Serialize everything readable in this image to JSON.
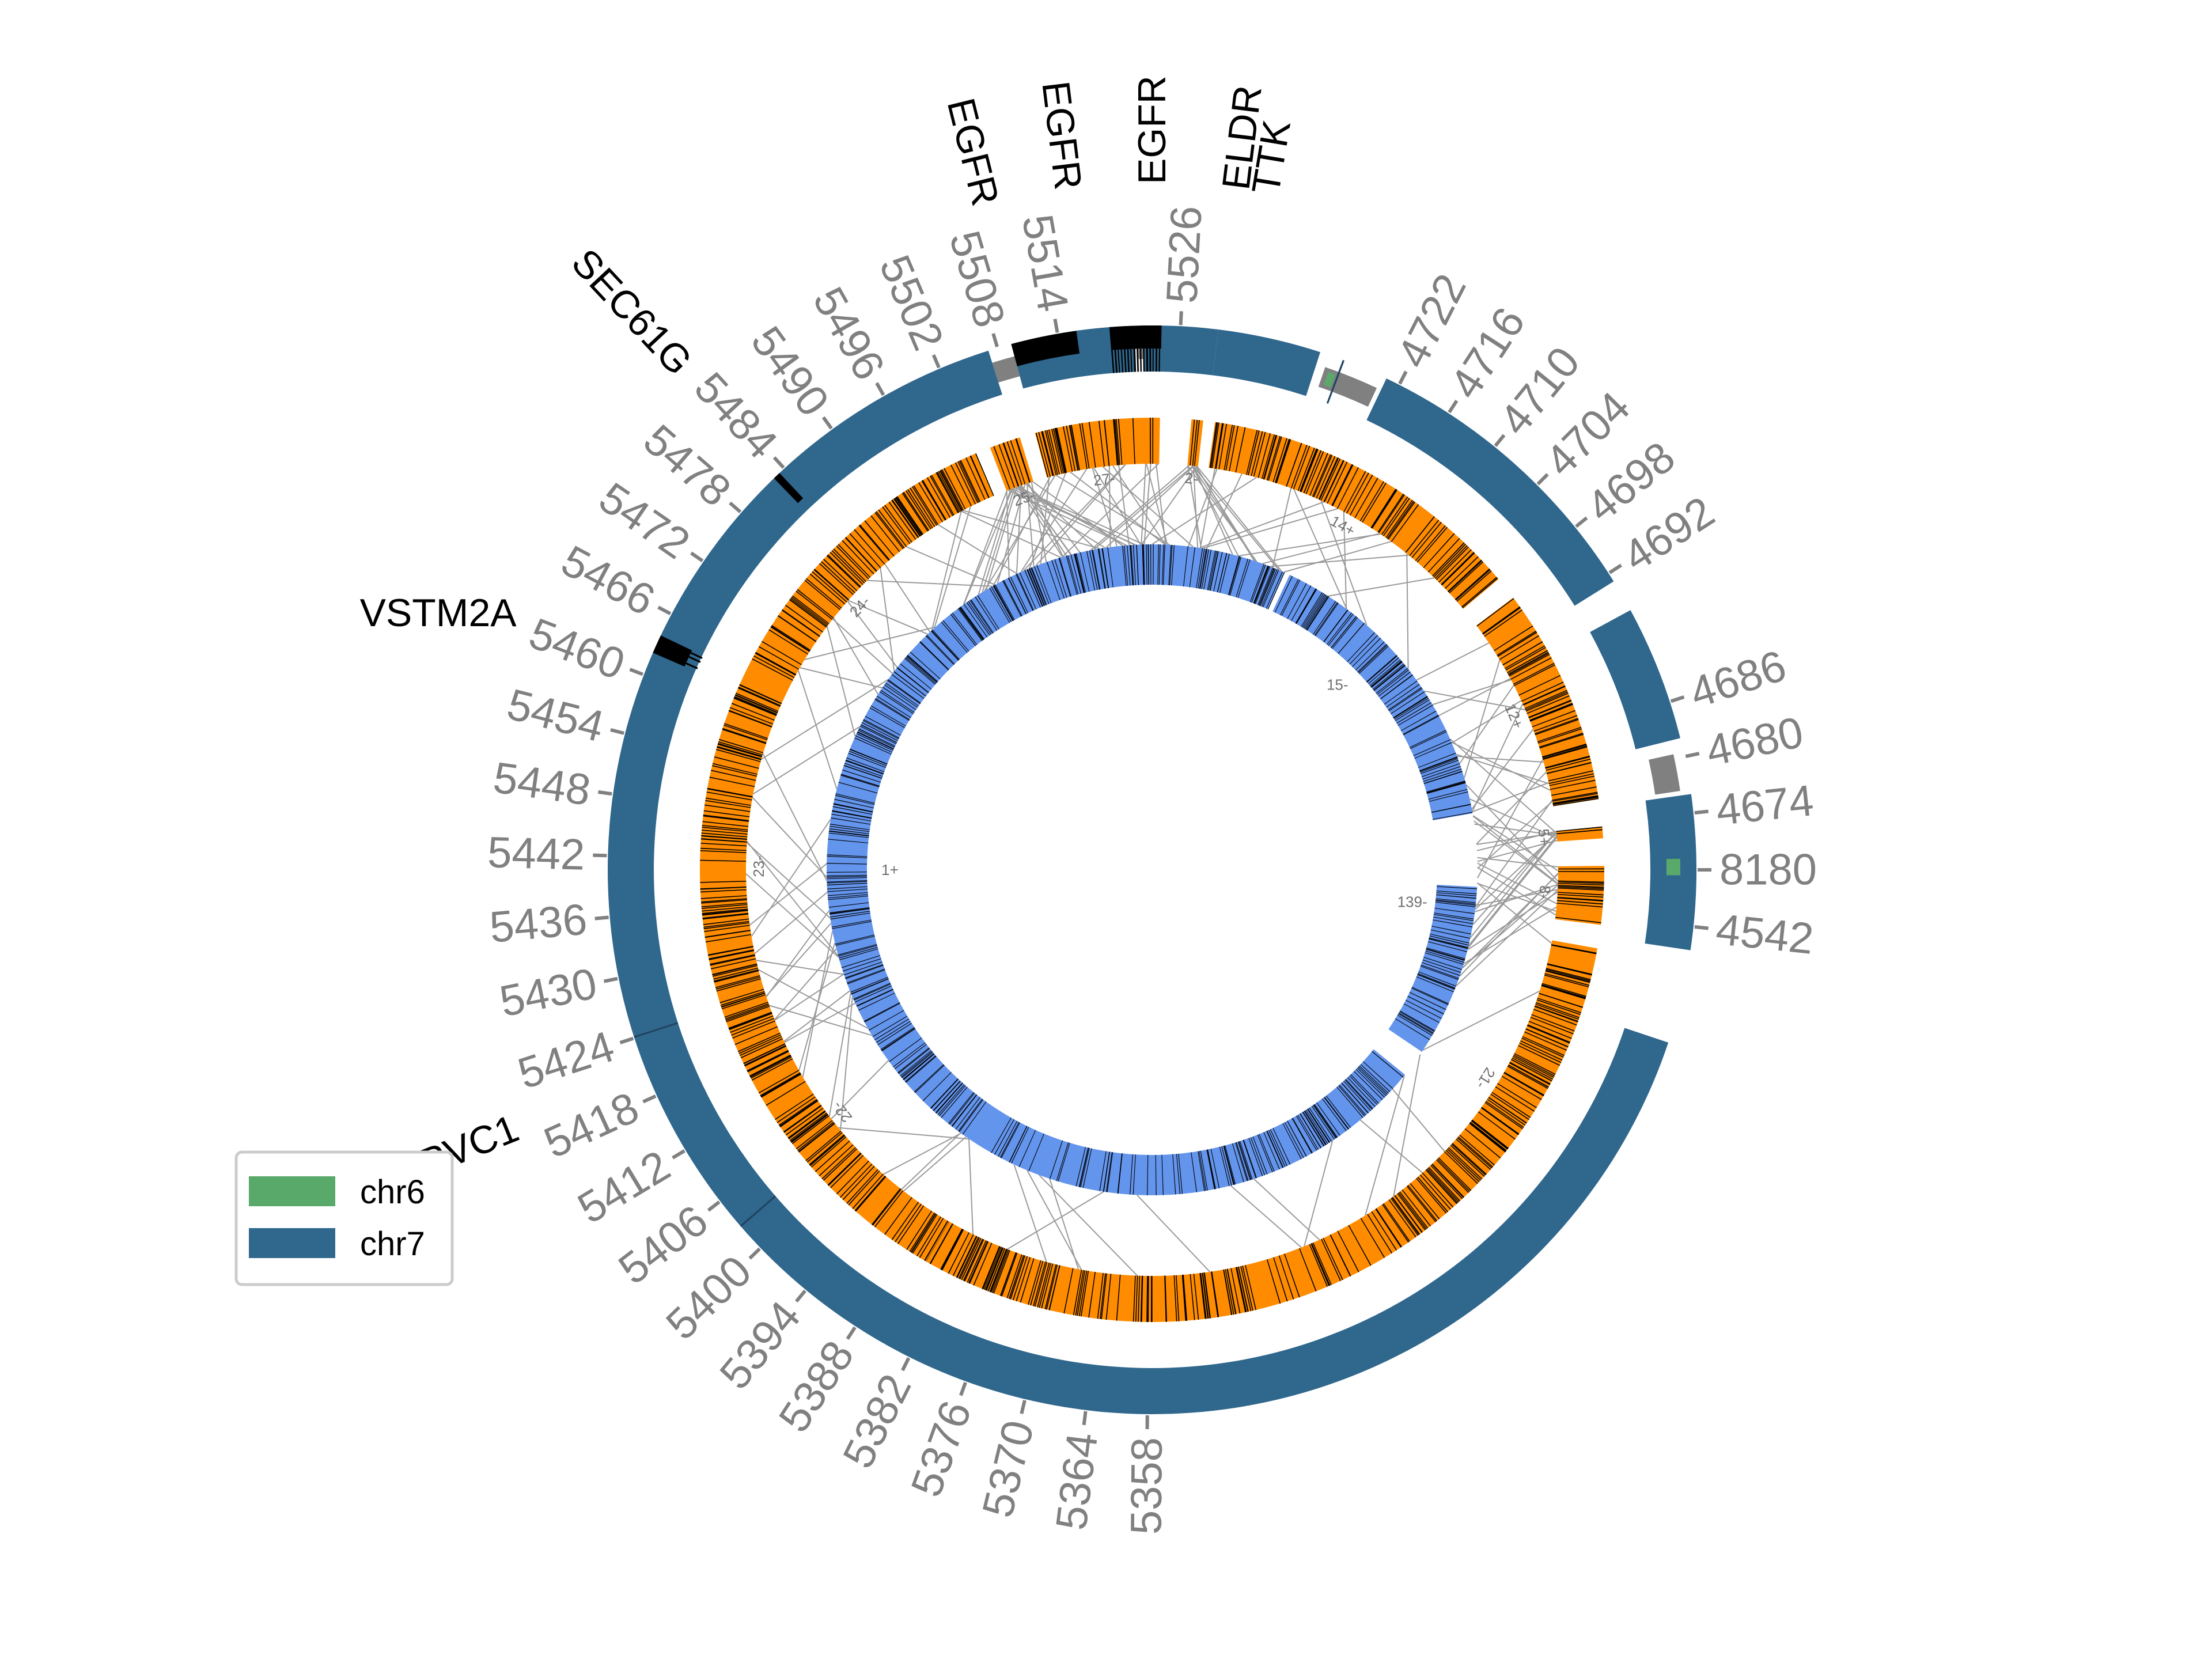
{
  "chart_data": {
    "type": "circos",
    "title": "",
    "colors": {
      "chr6": "#59a96a",
      "chr7": "#30678d",
      "gap": "#808080",
      "alignment_track": "#ff8c00",
      "inner_track": "#6495ed",
      "marks": "#000000",
      "links": "#9a9a9a",
      "ticks": "#808080"
    },
    "outer_regions": [
      {
        "chromosome": "chr7",
        "start": 4542,
        "end": 4550,
        "direction": "forward"
      },
      {
        "chromosome": "chr6",
        "start": 8178,
        "end": 8182,
        "direction": "forward"
      },
      {
        "chromosome": "chr7",
        "start": 4674,
        "end": 4686,
        "direction": "forward"
      },
      {
        "chromosome": "chr7",
        "start": 4687,
        "end": 4724,
        "direction": "forward"
      },
      {
        "chromosome": "chr6",
        "start": 4724,
        "end": 4728,
        "direction": "forward"
      },
      {
        "chromosome": "chr7",
        "start": 5522,
        "end": 5532,
        "direction": "reverse"
      },
      {
        "chromosome": "chr7",
        "start": 5460,
        "end": 5521,
        "direction": "reverse"
      },
      {
        "chromosome": "chr7",
        "start": 5352,
        "end": 5460,
        "direction": "reverse"
      }
    ],
    "ticks": [
      {
        "label": "4542",
        "angle": 96
      },
      {
        "label": "8180",
        "angle": 90
      },
      {
        "label": "4674",
        "angle": 84
      },
      {
        "label": "4680",
        "angle": 78
      },
      {
        "label": "4686",
        "angle": 72
      },
      {
        "label": "4692",
        "angle": 57
      },
      {
        "label": "4698",
        "angle": 51
      },
      {
        "label": "4704",
        "angle": 45
      },
      {
        "label": "4710",
        "angle": 39
      },
      {
        "label": "4716",
        "angle": 33
      },
      {
        "label": "4722",
        "angle": 27
      },
      {
        "label": "5526",
        "angle": 3
      },
      {
        "label": "5514",
        "angle": -10
      },
      {
        "label": "5508",
        "angle": -16.5
      },
      {
        "label": "5502",
        "angle": -23
      },
      {
        "label": "5496",
        "angle": -29.5
      },
      {
        "label": "5490",
        "angle": -36
      },
      {
        "label": "5484",
        "angle": -42.5
      },
      {
        "label": "5478",
        "angle": -49
      },
      {
        "label": "5472",
        "angle": -55.5
      },
      {
        "label": "5466",
        "angle": -62
      },
      {
        "label": "5460",
        "angle": -69
      },
      {
        "label": "5454",
        "angle": -75.5
      },
      {
        "label": "5448",
        "angle": -82
      },
      {
        "label": "5442",
        "angle": -88.5
      },
      {
        "label": "5436",
        "angle": -95
      },
      {
        "label": "5430",
        "angle": -101.5
      },
      {
        "label": "5424",
        "angle": -108
      },
      {
        "label": "5418",
        "angle": -114.5
      },
      {
        "label": "5412",
        "angle": -121
      },
      {
        "label": "5406",
        "angle": -127.5
      },
      {
        "label": "5400",
        "angle": -134
      },
      {
        "label": "5394",
        "angle": -140.5
      },
      {
        "label": "5388",
        "angle": -147
      },
      {
        "label": "5382",
        "angle": -153.5
      },
      {
        "label": "5376",
        "angle": -160
      },
      {
        "label": "5370",
        "angle": -166.5
      },
      {
        "label": "5364",
        "angle": -173
      },
      {
        "label": "5358",
        "angle": -179.5
      }
    ],
    "genes": [
      {
        "name": "EGFR",
        "angle": -14
      },
      {
        "name": "EGFR",
        "angle": -7
      },
      {
        "name": "EGFR",
        "angle": 0
      },
      {
        "name": "ELDR",
        "angle": 7
      },
      {
        "name": "TTK",
        "angle": 9.5
      },
      {
        "name": "SEC61G",
        "angle": -43
      },
      {
        "name": "VSTM2A",
        "angle": -68
      },
      {
        "name": "HPVC1",
        "angle": -112
      }
    ],
    "alignment_segments": [
      {
        "label": "2-",
        "start": 5,
        "end": 6.5
      },
      {
        "label": "14+",
        "start": 8,
        "end": 50
      },
      {
        "label": "12+",
        "start": 53,
        "end": 81
      },
      {
        "label": "5+",
        "start": 84.5,
        "end": 86
      },
      {
        "label": "8-",
        "start": 89.5,
        "end": 97
      },
      {
        "label": "21-",
        "start": 100,
        "end": 210
      },
      {
        "label": "22-",
        "start": 210,
        "end": 254
      },
      {
        "label": "23-",
        "start": 254,
        "end": 287
      },
      {
        "label": "24-",
        "start": 287,
        "end": 337
      },
      {
        "label": "25-",
        "start": 339,
        "end": 343
      },
      {
        "label": "27-",
        "start": 345,
        "end": 361
      }
    ],
    "inner_segments": [
      {
        "label": "15-",
        "start": 25,
        "end": 80
      },
      {
        "label": "139-",
        "start": 93,
        "end": 124
      },
      {
        "label": "1+",
        "start": 129,
        "end": 384
      }
    ],
    "legend": {
      "position": "lower-left",
      "entries": [
        {
          "label": "chr6",
          "color": "#59a96a"
        },
        {
          "label": "chr7",
          "color": "#30678d"
        }
      ]
    }
  }
}
